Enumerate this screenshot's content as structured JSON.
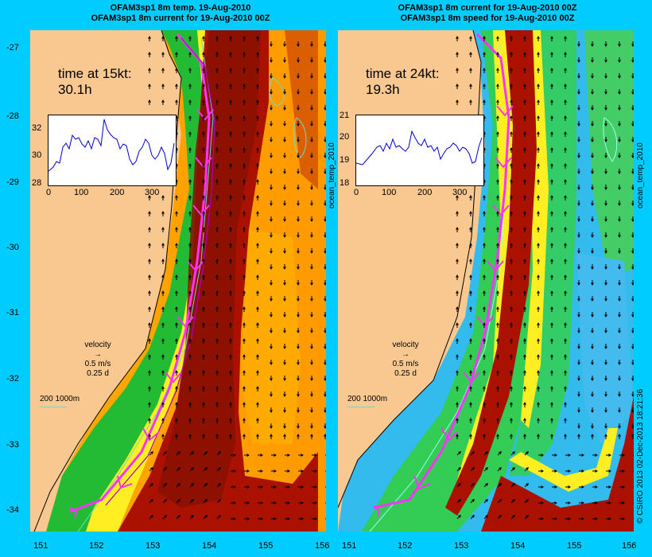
{
  "panels": {
    "left": {
      "title_line1": "OFAM3sp1 8m temp. 19-Aug-2010",
      "title_line2": "OFAM3sp1 8m current for 19-Aug-2010 00Z",
      "time_label": "time at 15kt:",
      "time_value": "30.1h",
      "inset_y_ticks": [
        "32",
        "30",
        "28"
      ],
      "inset_x_ticks": [
        "0",
        "100",
        "200",
        "300"
      ],
      "side_label": "ocean_temp_2010"
    },
    "right": {
      "title_line1": "OFAM3sp1 8m current for 19-Aug-2010 00Z",
      "title_line2": "OFAM3sp1 8m speed for 19-Aug-2010 00Z",
      "time_label": "time at 24kt:",
      "time_value": "19.3h",
      "inset_y_ticks": [
        "21",
        "20",
        "19",
        "18"
      ],
      "inset_x_ticks": [
        "0",
        "100",
        "200",
        "300"
      ],
      "side_label": "ocean_temp_2010"
    }
  },
  "y_axis_ticks": [
    "-27",
    "-28",
    "-29",
    "-30",
    "-31",
    "-32",
    "-33",
    "-34"
  ],
  "x_axis_ticks": [
    "151",
    "152",
    "153",
    "154",
    "155",
    "156"
  ],
  "legend": {
    "velocity_label": "velocity",
    "speed": "0.5 m/s",
    "duration": "0.25 d",
    "depth_contours": "200  1000m"
  },
  "credit": "© CSIRO 2013   02-Dec-2013 18:21:36",
  "colors": {
    "background": "#00ccff",
    "land": "#f8c890",
    "route": "#ff33ff",
    "contour": "#66ddcc",
    "inset_line": "#0000cc"
  }
}
